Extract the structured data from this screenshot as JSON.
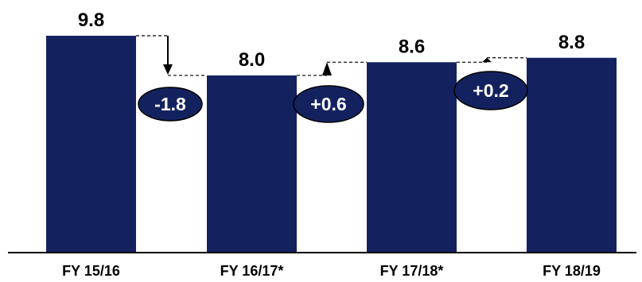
{
  "chart_data": {
    "type": "bar",
    "title": "",
    "xlabel": "",
    "ylabel": "",
    "categories": [
      "FY 15/16",
      "FY 16/17*",
      "FY 17/18*",
      "FY 18/19"
    ],
    "values": [
      9.8,
      8.0,
      8.6,
      8.8
    ],
    "value_labels": [
      "9.8",
      "8.0",
      "8.6",
      "8.8"
    ],
    "ylim": [
      0,
      9.8
    ],
    "grid": false,
    "legend": "none",
    "annotations": [
      {
        "from_index": 0,
        "to_index": 1,
        "label": "-1.8",
        "direction": "down"
      },
      {
        "from_index": 1,
        "to_index": 2,
        "label": "+0.6",
        "direction": "up"
      },
      {
        "from_index": 2,
        "to_index": 3,
        "label": "+0.2",
        "direction": "up"
      }
    ],
    "colors": {
      "bar": "#13225f",
      "bubble": "#13225f",
      "bubble_text": "#ffffff",
      "axis": "#000000",
      "connector": "#000000"
    }
  }
}
